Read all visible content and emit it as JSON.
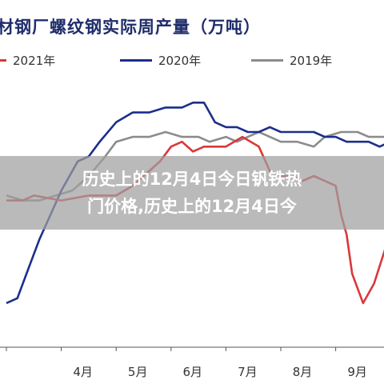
{
  "chart_data": {
    "type": "line",
    "title": "材钢厂螺纹钢实际周产量（万吨）",
    "xlabel": "",
    "ylabel": "",
    "x_tick_labels": [
      "4月",
      "5月",
      "6月",
      "7月",
      "8月",
      "9月",
      "10月"
    ],
    "legend_position": "top",
    "grid": false,
    "series": [
      {
        "name": "2021年",
        "color": "#d9383a",
        "points": [
          [
            0,
            52
          ],
          [
            0.3,
            52
          ],
          [
            0.5,
            53
          ],
          [
            1.0,
            52
          ],
          [
            1.5,
            53
          ],
          [
            2.0,
            53
          ],
          [
            2.3,
            55
          ],
          [
            2.6,
            58
          ],
          [
            2.8,
            60
          ],
          [
            3.0,
            63
          ],
          [
            3.2,
            64
          ],
          [
            3.4,
            62
          ],
          [
            3.6,
            63
          ],
          [
            3.8,
            63
          ],
          [
            4.0,
            63
          ],
          [
            4.3,
            65
          ],
          [
            4.6,
            63
          ],
          [
            4.8,
            58
          ],
          [
            5.0,
            57
          ],
          [
            5.2,
            57
          ],
          [
            5.4,
            56
          ],
          [
            5.6,
            57
          ],
          [
            5.8,
            56
          ],
          [
            6.0,
            55
          ],
          [
            6.1,
            49
          ],
          [
            6.2,
            45
          ],
          [
            6.3,
            37
          ],
          [
            6.5,
            31
          ],
          [
            6.7,
            35
          ],
          [
            6.9,
            42
          ],
          [
            7.1,
            48
          ],
          [
            7.3,
            51
          ],
          [
            7.5,
            51
          ],
          [
            7.7,
            52
          ],
          [
            7.9,
            52
          ],
          [
            8.1,
            52
          ],
          [
            8.2,
            56
          ],
          [
            8.3,
            59
          ],
          [
            8.5,
            68
          ],
          [
            8.7,
            86
          ],
          [
            8.9,
            84
          ],
          [
            9.1,
            84
          ]
        ]
      },
      {
        "name": "2020年",
        "color": "#1c2e8c",
        "points": [
          [
            0,
            31
          ],
          [
            0.2,
            32
          ],
          [
            0.4,
            38
          ],
          [
            0.6,
            44
          ],
          [
            0.8,
            49
          ],
          [
            1.0,
            54
          ],
          [
            1.3,
            60
          ],
          [
            1.5,
            61
          ],
          [
            1.7,
            64
          ],
          [
            2.0,
            68
          ],
          [
            2.3,
            70
          ],
          [
            2.6,
            70
          ],
          [
            2.9,
            71
          ],
          [
            3.2,
            71
          ],
          [
            3.4,
            72
          ],
          [
            3.6,
            72
          ],
          [
            3.8,
            68
          ],
          [
            4.0,
            67
          ],
          [
            4.2,
            67
          ],
          [
            4.4,
            66
          ],
          [
            4.6,
            66
          ],
          [
            4.8,
            67
          ],
          [
            5.0,
            66
          ],
          [
            5.2,
            66
          ],
          [
            5.4,
            66
          ],
          [
            5.6,
            66
          ],
          [
            5.8,
            65
          ],
          [
            6.0,
            65
          ],
          [
            6.2,
            64
          ],
          [
            6.4,
            64
          ],
          [
            6.6,
            64
          ],
          [
            6.8,
            63
          ],
          [
            7.0,
            64
          ],
          [
            7.3,
            65
          ],
          [
            7.5,
            65
          ],
          [
            7.6,
            64
          ],
          [
            7.8,
            63
          ],
          [
            8.0,
            63
          ],
          [
            8.2,
            63
          ],
          [
            8.4,
            64
          ],
          [
            8.6,
            64
          ],
          [
            8.8,
            63
          ],
          [
            9.1,
            63
          ]
        ]
      },
      {
        "name": "2019年",
        "color": "#8c8c8c",
        "points": [
          [
            0,
            53
          ],
          [
            0.3,
            52
          ],
          [
            0.6,
            52
          ],
          [
            0.9,
            53
          ],
          [
            1.2,
            54
          ],
          [
            1.5,
            57
          ],
          [
            1.8,
            61
          ],
          [
            2.0,
            64
          ],
          [
            2.3,
            65
          ],
          [
            2.6,
            65
          ],
          [
            2.9,
            66
          ],
          [
            3.2,
            65
          ],
          [
            3.5,
            65
          ],
          [
            3.7,
            64
          ],
          [
            4.0,
            65
          ],
          [
            4.2,
            64
          ],
          [
            4.4,
            65
          ],
          [
            4.6,
            66
          ],
          [
            4.8,
            65
          ],
          [
            5.0,
            64
          ],
          [
            5.3,
            64
          ],
          [
            5.6,
            63
          ],
          [
            5.8,
            65
          ],
          [
            6.1,
            66
          ],
          [
            6.4,
            66
          ],
          [
            6.6,
            65
          ],
          [
            6.9,
            65
          ],
          [
            7.1,
            64
          ],
          [
            7.4,
            65
          ],
          [
            7.6,
            64
          ],
          [
            7.9,
            63
          ],
          [
            8.2,
            63
          ],
          [
            8.4,
            63
          ],
          [
            8.6,
            63
          ],
          [
            8.8,
            62
          ],
          [
            9.1,
            62
          ]
        ]
      }
    ]
  },
  "overlay": {
    "line1": "历史上的12月4日今日钒铁热",
    "line2": "门价格,历史上的12月4日今"
  }
}
